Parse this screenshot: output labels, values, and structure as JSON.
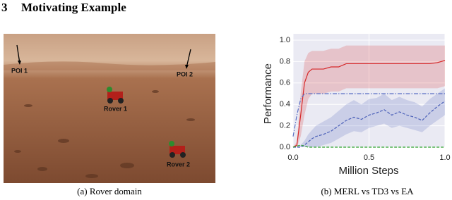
{
  "heading": {
    "number": "3",
    "title": "Motivating Example"
  },
  "figure_a": {
    "labels": [
      "POI 1",
      "POI 2",
      "Rover 1",
      "Rover 2"
    ],
    "caption": "(a) Rover domain"
  },
  "chart_data": {
    "type": "line",
    "caption": "(b) MERL vs TD3 vs EA",
    "xlabel": "Million Steps",
    "ylabel": "Performance",
    "xlim": [
      0,
      1
    ],
    "ylim": [
      0,
      1
    ],
    "xticks": [
      {
        "value": 0,
        "label": "0.0"
      },
      0.5,
      {
        "value": 1,
        "label": "1.0"
      }
    ],
    "yticks": [
      {
        "value": 0,
        "label": "0.0"
      },
      0.2,
      0.4,
      0.6,
      0.8,
      {
        "value": 1,
        "label": "1.0"
      }
    ],
    "grid": true,
    "x": [
      0,
      0.025,
      0.05,
      0.075,
      0.1,
      0.125,
      0.15,
      0.2,
      0.25,
      0.3,
      0.35,
      0.4,
      0.45,
      0.5,
      0.55,
      0.6,
      0.65,
      0.7,
      0.75,
      0.8,
      0.85,
      0.9,
      0.95,
      1.0
    ],
    "series": [
      {
        "color": "#d62728",
        "style": "solid",
        "values": [
          0,
          0.02,
          0.3,
          0.6,
          0.7,
          0.73,
          0.73,
          0.73,
          0.75,
          0.75,
          0.78,
          0.78,
          0.78,
          0.78,
          0.78,
          0.78,
          0.78,
          0.78,
          0.78,
          0.78,
          0.78,
          0.78,
          0.79,
          0.81
        ],
        "lower": [
          0,
          0,
          0.1,
          0.3,
          0.45,
          0.5,
          0.5,
          0.5,
          0.52,
          0.52,
          0.55,
          0.55,
          0.55,
          0.55,
          0.55,
          0.55,
          0.55,
          0.55,
          0.55,
          0.55,
          0.55,
          0.55,
          0.55,
          0.57
        ],
        "upper": [
          0,
          0.05,
          0.5,
          0.8,
          0.88,
          0.9,
          0.9,
          0.9,
          0.92,
          0.92,
          0.95,
          0.95,
          0.95,
          0.95,
          0.95,
          0.95,
          0.95,
          0.95,
          0.95,
          0.95,
          0.95,
          0.95,
          0.95,
          0.95
        ]
      },
      {
        "color": "#5a6fc4",
        "style": "dashdot",
        "values": [
          0.1,
          0.3,
          0.45,
          0.5,
          0.5,
          0.5,
          0.5,
          0.5,
          0.5,
          0.5,
          0.5,
          0.5,
          0.5,
          0.5,
          0.5,
          0.5,
          0.5,
          0.5,
          0.5,
          0.5,
          0.5,
          0.5,
          0.5,
          0.5
        ]
      },
      {
        "color": "#4a5fb8",
        "style": "dashed",
        "values": [
          0,
          0,
          0,
          0.02,
          0.05,
          0.08,
          0.1,
          0.12,
          0.15,
          0.2,
          0.25,
          0.28,
          0.26,
          0.3,
          0.32,
          0.35,
          0.3,
          0.33,
          0.3,
          0.28,
          0.25,
          0.32,
          0.38,
          0.43
        ],
        "lower": [
          0,
          0,
          0,
          0,
          0,
          0,
          0,
          0.02,
          0.04,
          0.08,
          0.12,
          0.15,
          0.14,
          0.18,
          0.2,
          0.22,
          0.18,
          0.2,
          0.18,
          0.16,
          0.14,
          0.2,
          0.25,
          0.3
        ],
        "upper": [
          0,
          0,
          0.02,
          0.06,
          0.12,
          0.16,
          0.2,
          0.24,
          0.28,
          0.34,
          0.4,
          0.44,
          0.4,
          0.45,
          0.46,
          0.5,
          0.44,
          0.47,
          0.44,
          0.42,
          0.38,
          0.45,
          0.5,
          0.55
        ]
      },
      {
        "color": "#2ca02c",
        "style": "dashed",
        "values": [
          0,
          0.01,
          0.02,
          0.01,
          0,
          0,
          0,
          0,
          0,
          0,
          0,
          0,
          0,
          0,
          0,
          0,
          0,
          0,
          0,
          0,
          0,
          0,
          0,
          0
        ]
      }
    ]
  }
}
